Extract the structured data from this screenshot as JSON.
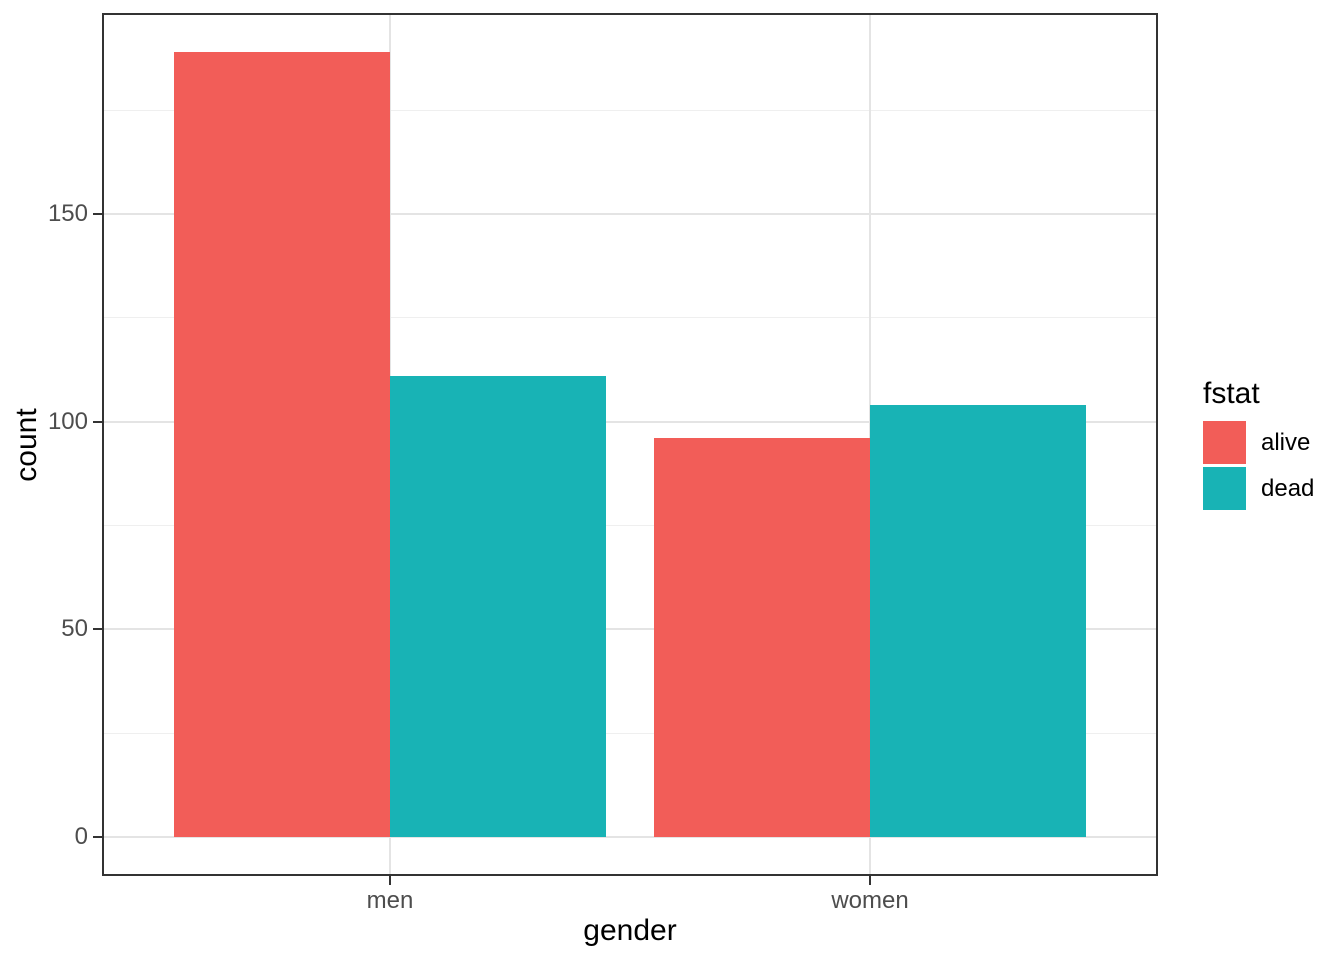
{
  "chart_data": {
    "type": "bar",
    "mode": "dodged",
    "title": "",
    "xlabel": "gender",
    "ylabel": "count",
    "categories": [
      "men",
      "women"
    ],
    "series": [
      {
        "name": "alive",
        "color": "#F25D58",
        "values": [
          189,
          96
        ]
      },
      {
        "name": "dead",
        "color": "#18B3B5",
        "values": [
          111,
          104
        ]
      }
    ],
    "legend": {
      "title": "fstat",
      "position": "right"
    },
    "y_ticks": [
      0,
      50,
      100,
      150
    ],
    "y_minor_gridlines": [
      25,
      75,
      125,
      175
    ],
    "ylim": [
      -9.45,
      198.45
    ],
    "grid": "on",
    "theme": {
      "figure_background": "#FFFFFF",
      "panel_background": "#FFFFFF",
      "grid_major_color": "#E4E4E4",
      "grid_minor_color": "#EFEFEF",
      "panel_border_color": "#333333",
      "tick_color": "#333333",
      "tick_label_color": "#4D4D4D",
      "axis_title_color": "#000000",
      "legend_text_color": "#000000"
    }
  }
}
